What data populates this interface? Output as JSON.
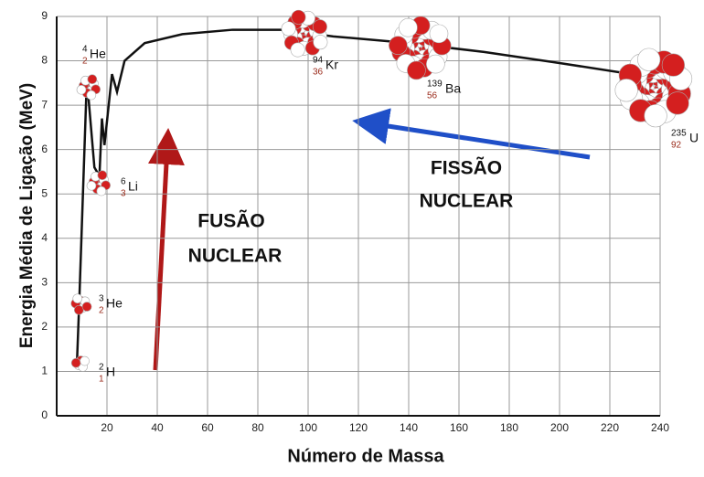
{
  "chart_data": {
    "type": "line",
    "x_label": "Número de Massa",
    "y_label": "Energia Média de Ligação (MeV)",
    "x": [
      8,
      9,
      12,
      15,
      17,
      18,
      19,
      22,
      24,
      27,
      35,
      50,
      70,
      90,
      110,
      140,
      170,
      200,
      240
    ],
    "series": [
      {
        "color": "#111111",
        "values": [
          1.1,
          2.6,
          7.6,
          5.6,
          5.4,
          6.7,
          6.1,
          7.7,
          7.3,
          8.0,
          8.4,
          8.6,
          8.7,
          8.7,
          8.55,
          8.4,
          8.2,
          7.95,
          7.6
        ]
      }
    ],
    "xlim": [
      0,
      240
    ],
    "ylim": [
      0,
      9
    ],
    "xticks": [
      20,
      40,
      60,
      80,
      100,
      120,
      140,
      160,
      180,
      200,
      220,
      240
    ],
    "yticks": [
      0,
      1,
      2,
      3,
      4,
      5,
      6,
      7,
      8,
      9
    ],
    "grid": true,
    "nuclides": [
      {
        "mass": "2",
        "number": "1",
        "symbol": "H"
      },
      {
        "mass": "3",
        "number": "2",
        "symbol": "He"
      },
      {
        "mass": "6",
        "number": "3",
        "symbol": "Li"
      },
      {
        "mass": "4",
        "number": "2",
        "symbol": "He"
      },
      {
        "mass": "94",
        "number": "36",
        "symbol": "Kr"
      },
      {
        "mass": "139",
        "number": "56",
        "symbol": "Ba"
      },
      {
        "mass": "235",
        "number": "92",
        "symbol": "U"
      }
    ],
    "fusion_label": [
      "FUSÃO",
      "NUCLEAR"
    ],
    "fission_label": [
      "FISSÃO",
      "NUCLEAR"
    ]
  }
}
